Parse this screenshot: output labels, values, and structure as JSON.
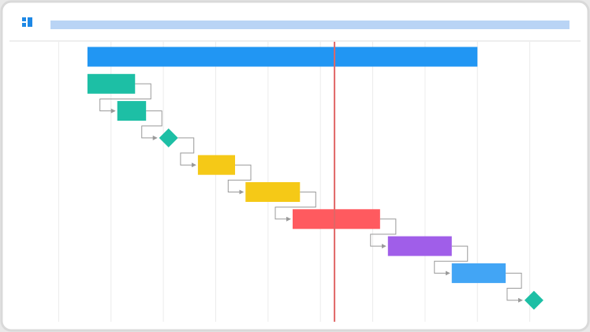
{
  "chart_data": {
    "type": "gantt",
    "xlim": [
      0,
      11
    ],
    "xticks": [
      1,
      2,
      3,
      4,
      5,
      6,
      7,
      8,
      9,
      10
    ],
    "grid": true,
    "today": 6.27,
    "today_color": "#e06666",
    "tasks": [
      {
        "start": 1.55,
        "end": 9.0,
        "color": "#2196f3"
      },
      {
        "start": 1.55,
        "end": 2.46,
        "color": "#1dbfa5"
      },
      {
        "start": 2.12,
        "end": 2.67,
        "color": "#1dbfa5"
      },
      {
        "start": 3.1,
        "end": 3.1,
        "color": "#1dbfa5",
        "shape": "diamond"
      },
      {
        "start": 3.66,
        "end": 4.37,
        "color": "#f5c917"
      },
      {
        "start": 4.57,
        "end": 5.61,
        "color": "#f5c917"
      },
      {
        "start": 5.47,
        "end": 7.14,
        "color": "#ff5a5f"
      },
      {
        "start": 7.29,
        "end": 8.51,
        "color": "#a05ee9"
      },
      {
        "start": 8.51,
        "end": 9.54,
        "color": "#42a5f5"
      },
      {
        "start": 10.08,
        "end": 10.08,
        "color": "#1dbfa5",
        "shape": "diamond"
      }
    ]
  }
}
